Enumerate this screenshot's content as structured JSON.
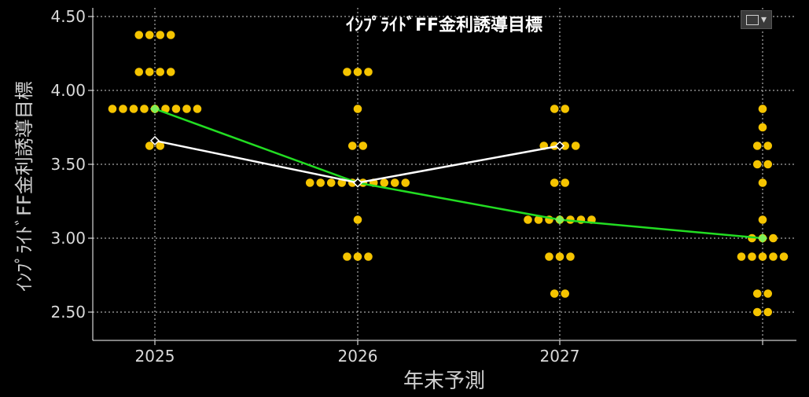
{
  "chart_data": {
    "type": "scatter",
    "title": "ｲﾝﾌﾟﾗｲﾄﾞFF金利誘導目標",
    "xlabel": "年末予測",
    "ylabel": "ｲﾝﾌﾟﾗｲﾄﾞFF金利誘導目標",
    "x_categories": [
      "2025",
      "2026",
      "2027",
      ""
    ],
    "y_ticks": [
      "2.50",
      "3.00",
      "3.50",
      "4.00",
      "4.50"
    ],
    "ylim": [
      2.25,
      4.55
    ],
    "grid": true,
    "dot_color": "#f5c400",
    "dots": [
      {
        "x": 0,
        "y": 4.375,
        "count": 4
      },
      {
        "x": 0,
        "y": 4.125,
        "count": 4
      },
      {
        "x": 0,
        "y": 3.875,
        "count": 9
      },
      {
        "x": 0,
        "y": 3.625,
        "count": 2
      },
      {
        "x": 1,
        "y": 4.125,
        "count": 3
      },
      {
        "x": 1,
        "y": 3.875,
        "count": 1
      },
      {
        "x": 1,
        "y": 3.625,
        "count": 2
      },
      {
        "x": 1,
        "y": 3.375,
        "count": 10
      },
      {
        "x": 1,
        "y": 3.125,
        "count": 1
      },
      {
        "x": 1,
        "y": 2.875,
        "count": 3
      },
      {
        "x": 2,
        "y": 3.875,
        "count": 2
      },
      {
        "x": 2,
        "y": 3.625,
        "count": 4
      },
      {
        "x": 2,
        "y": 3.375,
        "count": 2
      },
      {
        "x": 2,
        "y": 3.125,
        "count": 7
      },
      {
        "x": 2,
        "y": 2.875,
        "count": 3
      },
      {
        "x": 2,
        "y": 2.625,
        "count": 2
      },
      {
        "x": 3,
        "y": 3.875,
        "count": 1
      },
      {
        "x": 3,
        "y": 3.75,
        "count": 1
      },
      {
        "x": 3,
        "y": 3.625,
        "count": 2
      },
      {
        "x": 3,
        "y": 3.5,
        "count": 2
      },
      {
        "x": 3,
        "y": 3.375,
        "count": 1
      },
      {
        "x": 3,
        "y": 3.125,
        "count": 1
      },
      {
        "x": 3,
        "y": 3.0,
        "count": 3
      },
      {
        "x": 3,
        "y": 2.875,
        "count": 5
      },
      {
        "x": 3,
        "y": 2.625,
        "count": 2
      },
      {
        "x": 3,
        "y": 2.5,
        "count": 2
      }
    ],
    "series": [
      {
        "color": "#22dd22",
        "marker_color": "#7ef05a",
        "points": [
          [
            0,
            3.875
          ],
          [
            1,
            3.375
          ],
          [
            2,
            3.125
          ],
          [
            3,
            3.0
          ]
        ]
      },
      {
        "color": "#ffffff",
        "marker_color": "#ffffff",
        "points": [
          [
            0,
            3.66
          ],
          [
            1,
            3.375
          ],
          [
            2,
            3.625
          ]
        ]
      }
    ]
  }
}
